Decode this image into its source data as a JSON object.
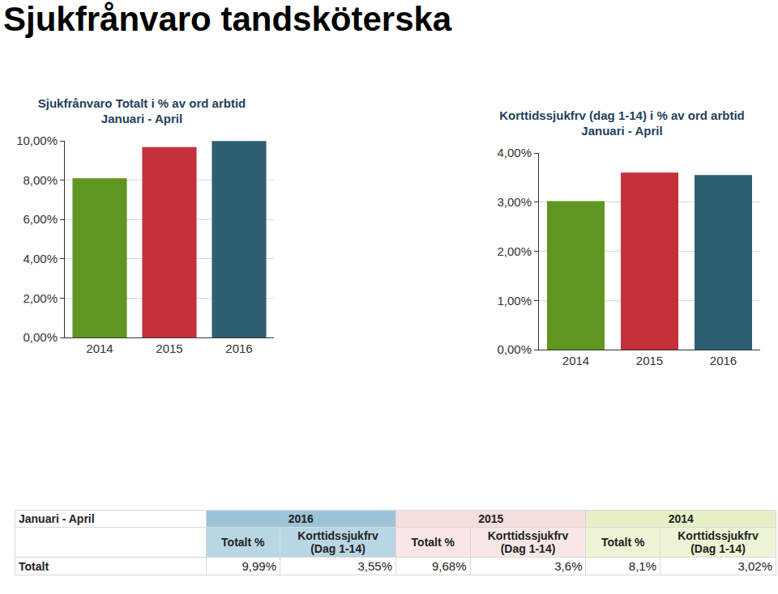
{
  "title": "Sjukfrånvaro tandsköterska",
  "chart_data": [
    {
      "type": "bar",
      "title": "Sjukfrånvaro Totalt i % av ord arbtid",
      "subtitle": "Januari - April",
      "categories": [
        "2014",
        "2015",
        "2016"
      ],
      "values": [
        8.1,
        9.68,
        9.99
      ],
      "colors": [
        "#5e961f",
        "#c4303a",
        "#2e5f70"
      ],
      "ylim": [
        0,
        10
      ],
      "yticks": [
        {
          "value": 0,
          "label": "0,00%"
        },
        {
          "value": 2,
          "label": "2,00%"
        },
        {
          "value": 4,
          "label": "4,00%"
        },
        {
          "value": 6,
          "label": "6,00%"
        },
        {
          "value": 8,
          "label": "8,00%"
        },
        {
          "value": 10,
          "label": "10,00%"
        }
      ],
      "grid": true
    },
    {
      "type": "bar",
      "title": "Korttidssjukfrv (dag 1-14) i % av ord arbtid",
      "subtitle": "Januari - April",
      "categories": [
        "2014",
        "2015",
        "2016"
      ],
      "values": [
        3.02,
        3.6,
        3.55
      ],
      "colors": [
        "#5e961f",
        "#c4303a",
        "#2e5f70"
      ],
      "ylim": [
        0,
        4
      ],
      "yticks": [
        {
          "value": 0,
          "label": "0,00%"
        },
        {
          "value": 1,
          "label": "1,00%"
        },
        {
          "value": 2,
          "label": "2,00%"
        },
        {
          "value": 3,
          "label": "3,00%"
        },
        {
          "value": 4,
          "label": "4,00%"
        }
      ],
      "grid": true
    }
  ],
  "table": {
    "header": [
      "Januari - April",
      "2016",
      "2015",
      "2014"
    ],
    "subheader": [
      "Totalt %",
      "Korttidssjukfrv (Dag 1-14)",
      "Totalt %",
      "Korttidssjukfrv (Dag 1-14)",
      "Totalt %",
      "Korttidssjukfrv (Dag 1-14)"
    ],
    "rows": [
      [
        "Totalt",
        "9,99%",
        "3,55%",
        "9,68%",
        "3,6%",
        "8,1%",
        "3,02%"
      ]
    ]
  }
}
